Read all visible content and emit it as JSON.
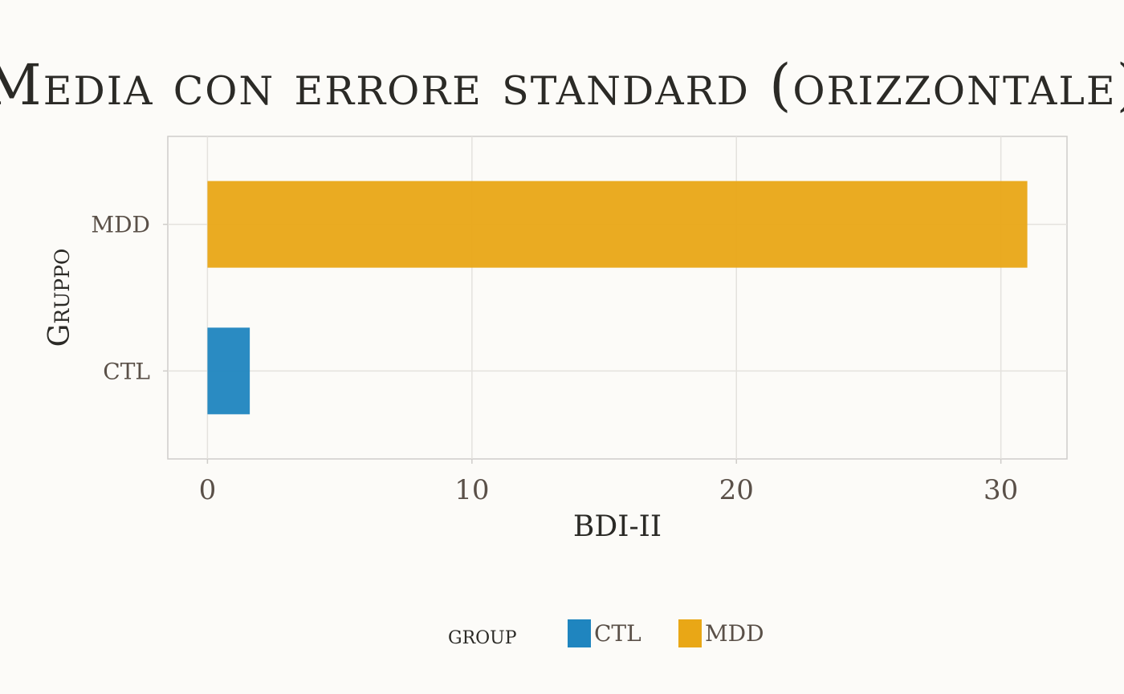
{
  "chart_data": {
    "type": "bar",
    "orientation": "horizontal",
    "title": "Media con errore standard (orizzontale)",
    "xlabel": "BDI-II",
    "ylabel": "Gruppo",
    "categories": [
      "CTL",
      "MDD"
    ],
    "values": [
      1.6,
      31.0
    ],
    "colors": [
      "#1f85bf",
      "#e9a716"
    ],
    "xlim": [
      -1.5,
      32.5
    ],
    "x_ticks": [
      0,
      10,
      20,
      30
    ],
    "x_tick_labels": [
      "0",
      "10",
      "20",
      "30"
    ],
    "grid": true,
    "legend": {
      "title": "group",
      "position": "bottom",
      "entries": [
        "CTL",
        "MDD"
      ]
    }
  }
}
